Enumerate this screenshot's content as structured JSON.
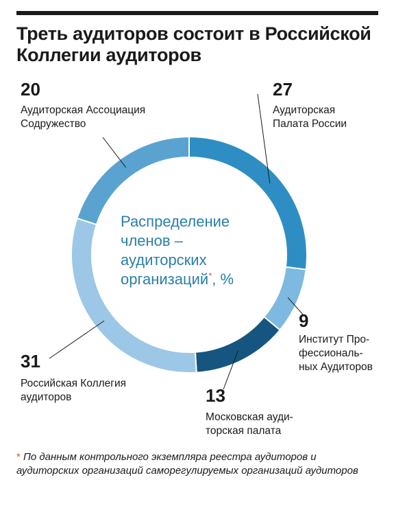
{
  "title": "Треть аудиторов состоит в Российской Коллегии аудиторов",
  "center_label": {
    "lines": [
      "Распределение",
      "членов –",
      "аудиторских",
      "организаций"
    ],
    "star": "*",
    "suffix": ", %"
  },
  "footnote": {
    "star": "*",
    "text": " По данным контрольного экземпляра реестра аудиторов и аудиторских организаций саморегулируемых организаций аудиторов"
  },
  "chart_data": {
    "type": "pie",
    "donut": true,
    "unit": "%",
    "start": "top, clockwise",
    "slices": [
      {
        "value": 27,
        "label_lines": [
          "Аудиторская",
          "Палата России"
        ],
        "color": "#2e8ec4"
      },
      {
        "value": 9,
        "label_lines": [
          "Институт Про-",
          "фессиональ-",
          "ных Аудиторов"
        ],
        "color": "#7db9e0"
      },
      {
        "value": 13,
        "label_lines": [
          "Московская ауди-",
          "торская палата"
        ],
        "color": "#15557f"
      },
      {
        "value": 31,
        "label_lines": [
          "Российская Коллегия",
          "аудиторов"
        ],
        "color": "#9dc7e6"
      },
      {
        "value": 20,
        "label_lines": [
          "Аудиторская Ассоциация",
          "Содружество"
        ],
        "color": "#5aa3d1"
      }
    ]
  }
}
